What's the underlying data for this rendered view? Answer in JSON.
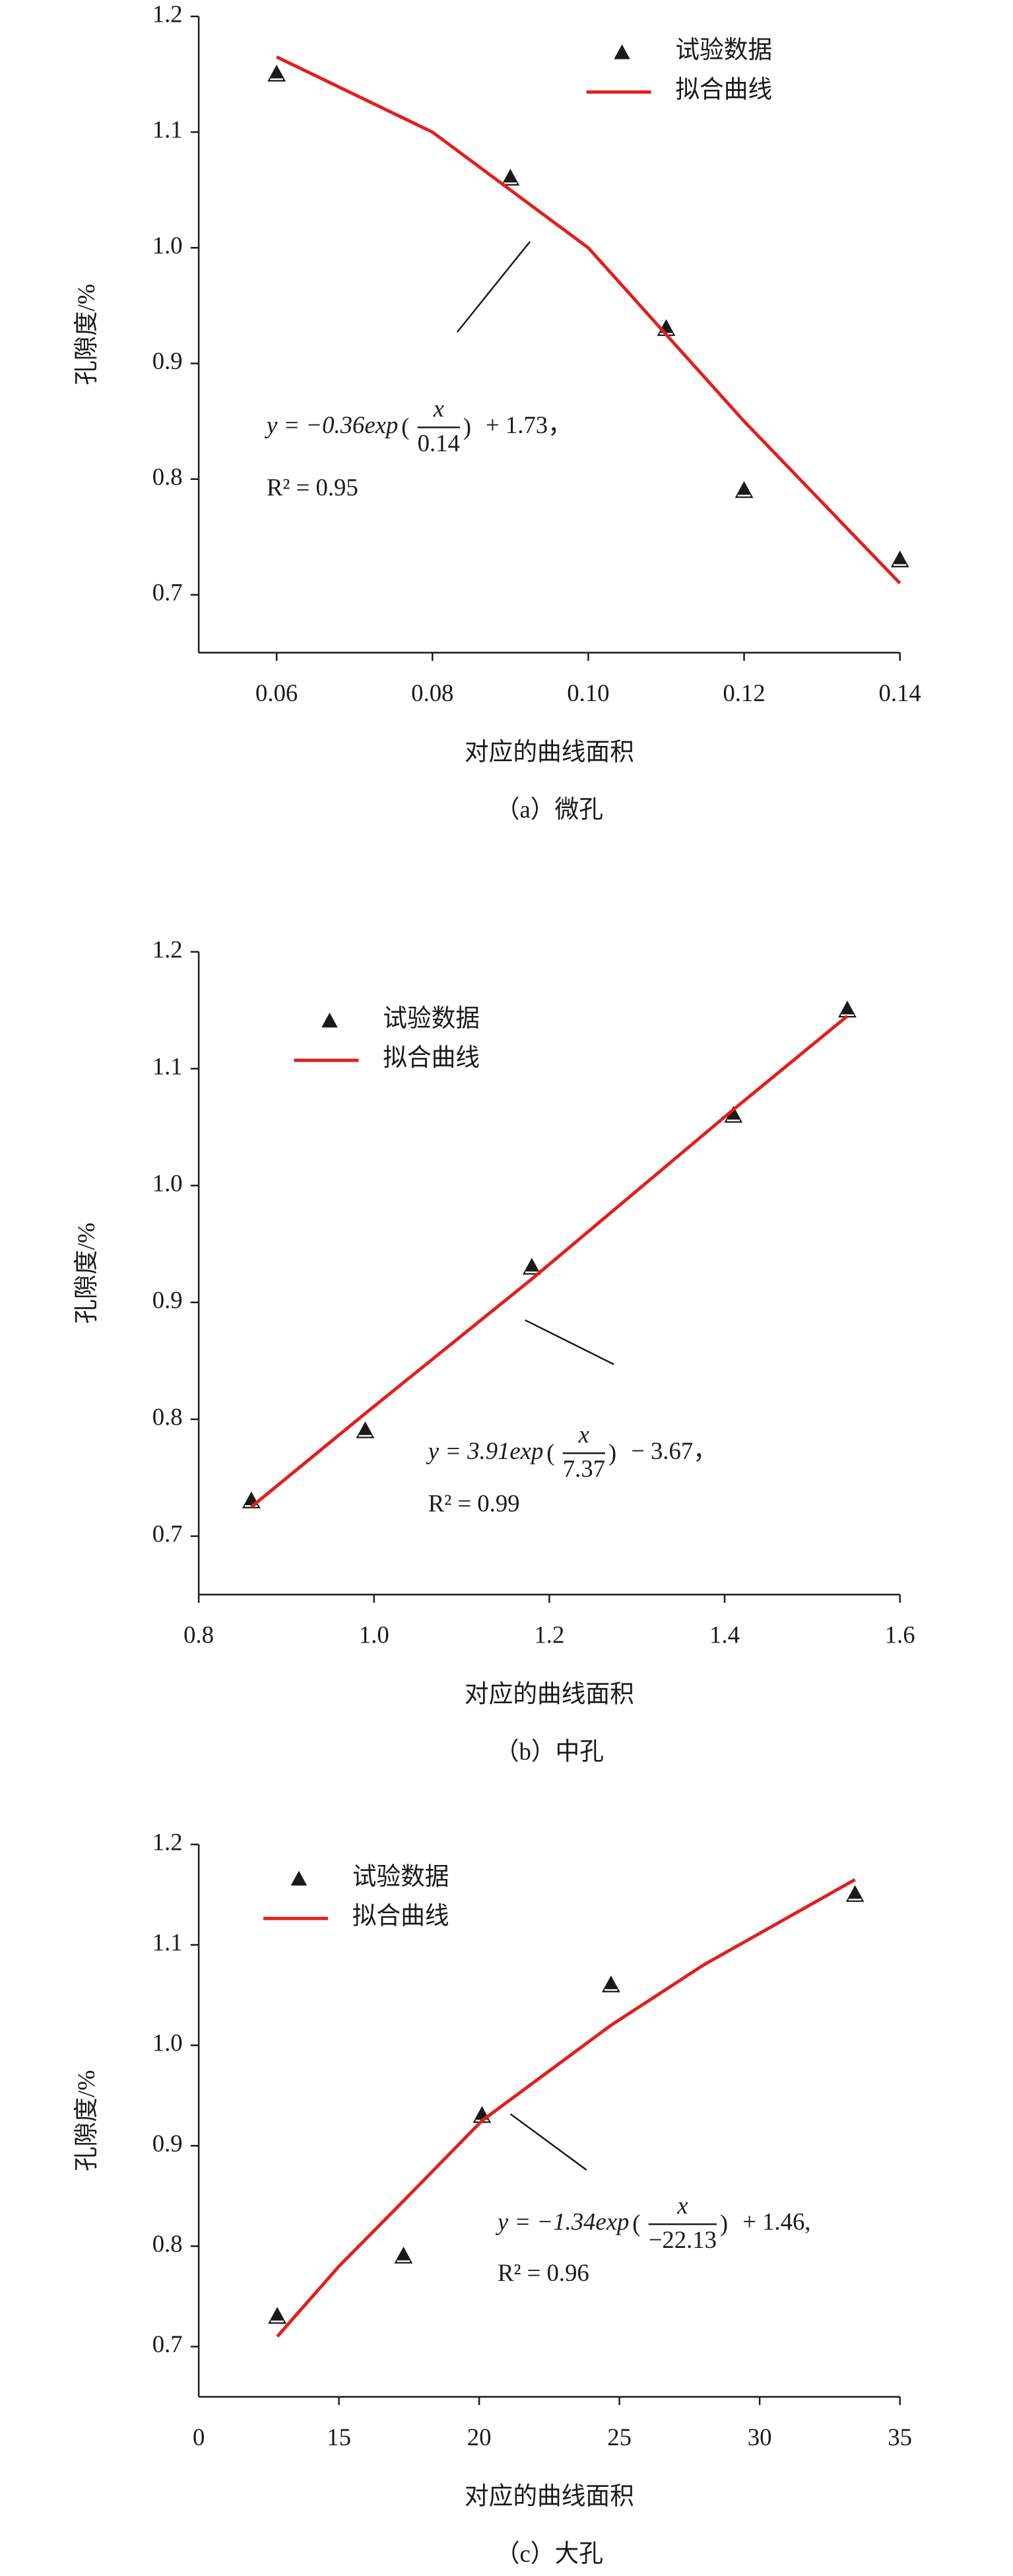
{
  "chart_data": [
    {
      "type": "scatter",
      "x_label": "对应的曲线面积",
      "y_label": "孔隙度/%",
      "caption": "（a）微孔",
      "xlim": [
        0.05,
        0.14
      ],
      "xticks": [
        0.06,
        0.08,
        {
          "value": 0.1,
          "label": "0.10"
        },
        0.12,
        0.14
      ],
      "ylim": [
        0.65,
        1.2
      ],
      "yticks": [
        0.7,
        0.8,
        0.9,
        {
          "value": 1.0,
          "label": "1.0"
        },
        1.1,
        1.2
      ],
      "legend": "upper right",
      "series": [
        {
          "name": "试验数据",
          "type": "scatter",
          "color": "#1a1a1a",
          "x": [
            0.06,
            0.09,
            0.11,
            0.12,
            0.14
          ],
          "values": [
            1.15,
            1.06,
            0.93,
            0.79,
            0.73
          ]
        },
        {
          "name": "拟合曲线",
          "type": "line",
          "color": "#e0201f",
          "x": [
            0.06,
            0.08,
            0.1,
            0.12,
            0.14
          ],
          "values": [
            1.165,
            1.1,
            1.0,
            0.85,
            0.71
          ]
        }
      ],
      "annotation": {
        "prefix": "y = −0.36exp",
        "numerator": "x",
        "denominator": "0.14",
        "suffix": "+ 1.73，",
        "r2": "R² = 0.95"
      }
    },
    {
      "type": "scatter",
      "x_label": "对应的曲线面积",
      "y_label": "孔隙度/%",
      "caption": "（b）中孔",
      "xlim": [
        0.8,
        1.6
      ],
      "xticks": [
        0.8,
        {
          "value": 1.0,
          "label": "1.0"
        },
        1.2,
        1.4,
        1.6
      ],
      "ylim": [
        0.65,
        1.2
      ],
      "yticks": [
        0.7,
        0.8,
        0.9,
        {
          "value": 1.0,
          "label": "1.0"
        },
        1.1,
        1.2
      ],
      "legend": "upper left",
      "series": [
        {
          "name": "试验数据",
          "type": "scatter",
          "color": "#1a1a1a",
          "x": [
            0.86,
            0.99,
            1.18,
            1.41,
            1.54
          ],
          "values": [
            0.73,
            0.79,
            0.93,
            1.06,
            1.15
          ]
        },
        {
          "name": "拟合曲线",
          "type": "line",
          "color": "#e0201f",
          "x": [
            0.86,
            0.99,
            1.18,
            1.41,
            1.54
          ],
          "values": [
            0.725,
            0.805,
            0.92,
            1.065,
            1.145
          ]
        }
      ],
      "annotation": {
        "prefix": "y = 3.91exp",
        "numerator": "x",
        "denominator": "7.37",
        "suffix": "− 3.67，",
        "r2": "R² = 0.99"
      }
    },
    {
      "type": "scatter",
      "x_label": "对应的曲线面积",
      "y_label": "孔隙度/%",
      "caption": "（c）大孔",
      "x_origin_label": "0",
      "xlim": [
        10,
        35
      ],
      "xticks": [
        15,
        20,
        25,
        30,
        35
      ],
      "ylim": [
        0.65,
        1.2
      ],
      "yticks": [
        0.7,
        0.8,
        0.9,
        {
          "value": 1.0,
          "label": "1.0"
        },
        1.1,
        1.2
      ],
      "legend": "upper left",
      "series": [
        {
          "name": "试验数据",
          "type": "scatter",
          "color": "#1a1a1a",
          "x": [
            12.8,
            17.3,
            20.1,
            24.7,
            33.4
          ],
          "values": [
            0.73,
            0.79,
            0.93,
            1.06,
            1.15
          ]
        },
        {
          "name": "拟合曲线",
          "type": "line",
          "color": "#e0201f",
          "x": [
            12.8,
            15,
            17.3,
            20.1,
            24.7,
            28,
            33.4
          ],
          "values": [
            0.71,
            0.78,
            0.845,
            0.925,
            1.02,
            1.08,
            1.165
          ]
        }
      ],
      "annotation": {
        "prefix": "y = −1.34exp",
        "numerator": "x",
        "denominator": "−22.13",
        "suffix": "+ 1.46,",
        "r2": "R² = 0.96"
      }
    }
  ]
}
